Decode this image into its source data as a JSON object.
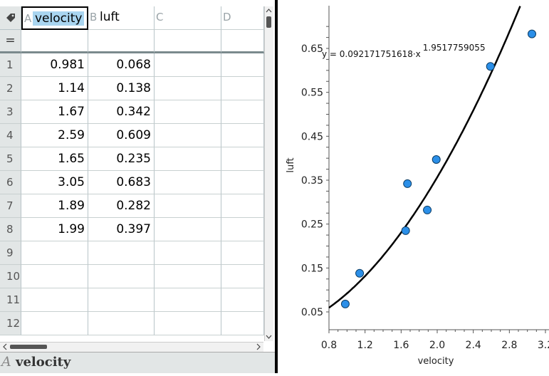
{
  "spreadsheet": {
    "columns": [
      {
        "letter": "A",
        "name": "velocity"
      },
      {
        "letter": "B",
        "name": "luft"
      },
      {
        "letter": "C",
        "name": ""
      },
      {
        "letter": "D",
        "name": ""
      }
    ],
    "formula_row_label": "=",
    "rows": [
      {
        "num": "1",
        "a": "0.981",
        "b": "0.068"
      },
      {
        "num": "2",
        "a": "1.14",
        "b": "0.138"
      },
      {
        "num": "3",
        "a": "1.67",
        "b": "0.342"
      },
      {
        "num": "4",
        "a": "2.59",
        "b": "0.609"
      },
      {
        "num": "5",
        "a": "1.65",
        "b": "0.235"
      },
      {
        "num": "6",
        "a": "3.05",
        "b": "0.683"
      },
      {
        "num": "7",
        "a": "1.89",
        "b": "0.282"
      },
      {
        "num": "8",
        "a": "1.99",
        "b": "0.397"
      },
      {
        "num": "9",
        "a": "",
        "b": ""
      },
      {
        "num": "10",
        "a": "",
        "b": ""
      },
      {
        "num": "11",
        "a": "",
        "b": ""
      },
      {
        "num": "12",
        "a": "",
        "b": ""
      }
    ],
    "entry_bar": {
      "column_letter": "A",
      "column_name": "velocity"
    }
  },
  "chart_data": {
    "type": "scatter",
    "xlabel": "velocity",
    "ylabel": "luft",
    "xlim": [
      0.8,
      3.2
    ],
    "ylim": [
      0.05,
      0.7
    ],
    "x_ticks": [
      "0.8",
      "1.2",
      "1.6",
      "2.0",
      "2.4",
      "2.8",
      "3.2"
    ],
    "y_ticks": [
      "0.05",
      "0.15",
      "0.25",
      "0.35",
      "0.45",
      "0.55",
      "0.65"
    ],
    "points": [
      {
        "x": 0.981,
        "y": 0.068
      },
      {
        "x": 1.14,
        "y": 0.138
      },
      {
        "x": 1.67,
        "y": 0.342
      },
      {
        "x": 2.59,
        "y": 0.609
      },
      {
        "x": 1.65,
        "y": 0.235
      },
      {
        "x": 3.05,
        "y": 0.683
      },
      {
        "x": 1.89,
        "y": 0.282
      },
      {
        "x": 1.99,
        "y": 0.397
      }
    ],
    "fit": {
      "a": 0.092171751618,
      "b": 1.9517759055,
      "equation_prefix": "y = 0.092171751618·x",
      "equation_exponent": "1.9517759055"
    },
    "point_color": "#2b8fe8",
    "curve_color": "#000000"
  }
}
